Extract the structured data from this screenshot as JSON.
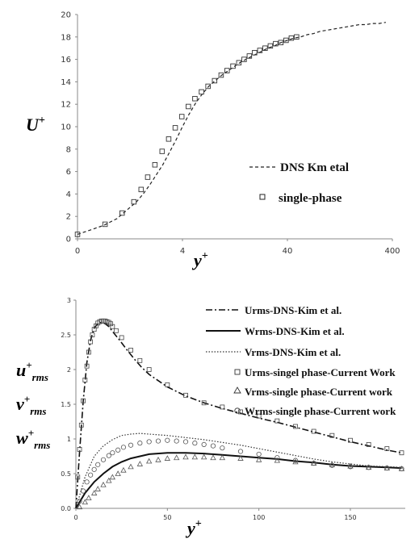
{
  "chart_data": [
    {
      "type": "line",
      "ylabel": "U+",
      "xlabel": "y+",
      "x_tick_labels": [
        "0",
        "4",
        "40",
        "400"
      ],
      "y_ticks": [
        0,
        2,
        4,
        6,
        8,
        10,
        12,
        14,
        16,
        18,
        20
      ],
      "ylim": [
        0,
        20
      ],
      "grid": false,
      "legend_position": "center-right",
      "series": [
        {
          "name": "DNS Km etal",
          "style": "dashed-line",
          "x": [
            0,
            0.5,
            1,
            1.5,
            2,
            2.5,
            3,
            3.5,
            4,
            4.5,
            5,
            5.5,
            6,
            6.5,
            7,
            7.5,
            8,
            8.5,
            9,
            9.5,
            10,
            10.5,
            11,
            11.5,
            12,
            12.5,
            13,
            13.5,
            14,
            14.5,
            15,
            15.5,
            16,
            16.5,
            17,
            17.5,
            18,
            18.5,
            19,
            19.5,
            20,
            20.5,
            21,
            21.5,
            22,
            22.5,
            23,
            23.5
          ],
          "values": [
            0.4,
            0.6,
            0.8,
            1.0,
            1.2,
            1.5,
            1.8,
            2.3,
            2.8,
            3.3,
            4.0,
            4.8,
            5.7,
            6.6,
            7.7,
            8.8,
            10.0,
            11.1,
            12.1,
            12.9,
            13.6,
            14.1,
            14.6,
            15.0,
            15.4,
            15.8,
            16.1,
            16.4,
            16.7,
            17.0,
            17.2,
            17.5,
            17.7,
            17.9,
            18.0,
            18.2,
            18.3,
            18.5,
            18.6,
            18.7,
            18.8,
            18.9,
            19.0,
            19.1,
            19.1,
            19.2,
            19.2,
            19.3
          ]
        },
        {
          "name": "single-phase",
          "style": "open-square",
          "x": [
            0,
            2.1,
            3.4,
            4.3,
            4.85,
            5.35,
            5.9,
            6.45,
            6.95,
            7.45,
            7.95,
            8.45,
            8.95,
            9.45,
            9.95,
            10.45,
            10.95,
            11.4,
            11.85,
            12.3,
            12.7,
            13.1,
            13.5,
            13.9,
            14.3,
            14.7,
            15.1,
            15.5,
            15.9,
            16.3,
            16.7
          ],
          "values": [
            0.4,
            1.3,
            2.3,
            3.3,
            4.4,
            5.5,
            6.6,
            7.8,
            8.9,
            9.9,
            10.9,
            11.8,
            12.5,
            13.1,
            13.6,
            14.1,
            14.6,
            15.0,
            15.4,
            15.7,
            16.0,
            16.3,
            16.6,
            16.8,
            17.0,
            17.2,
            17.4,
            17.5,
            17.7,
            17.9,
            18.0
          ]
        }
      ]
    },
    {
      "type": "line",
      "xlabel": "y+",
      "ylabel_lines": [
        "u+rms",
        "v+rms",
        "w+rms"
      ],
      "x_ticks": [
        0,
        50,
        100,
        150
      ],
      "y_ticks": [
        0,
        0.5,
        1,
        1.5,
        2,
        2.5,
        3
      ],
      "y_tick_labels": [
        "0.0",
        "0.5",
        "1",
        "1.5",
        "2",
        "2.5",
        "3"
      ],
      "xlim": [
        0,
        180
      ],
      "ylim": [
        0,
        3
      ],
      "grid": false,
      "legend_position": "top-right",
      "series": [
        {
          "name": "Urms-DNS-Kim et al.",
          "style": "dash-dot-line",
          "x": [
            0,
            2,
            4,
            6,
            8,
            10,
            12,
            14,
            16,
            18,
            20,
            24,
            28,
            32,
            36,
            40,
            50,
            60,
            70,
            80,
            90,
            100,
            110,
            120,
            130,
            140,
            150,
            160,
            170,
            178
          ],
          "values": [
            0,
            0.8,
            1.55,
            2.1,
            2.42,
            2.6,
            2.66,
            2.68,
            2.66,
            2.62,
            2.55,
            2.42,
            2.28,
            2.15,
            2.03,
            1.93,
            1.75,
            1.62,
            1.52,
            1.44,
            1.37,
            1.3,
            1.24,
            1.17,
            1.1,
            1.03,
            0.96,
            0.9,
            0.84,
            0.8
          ]
        },
        {
          "name": "Wrms-DNS-Kim et al.",
          "style": "solid-line",
          "x": [
            0,
            5,
            10,
            15,
            20,
            25,
            30,
            40,
            50,
            60,
            70,
            80,
            90,
            100,
            110,
            120,
            130,
            140,
            150,
            160,
            170,
            178
          ],
          "values": [
            0,
            0.22,
            0.38,
            0.5,
            0.6,
            0.67,
            0.72,
            0.78,
            0.8,
            0.8,
            0.79,
            0.77,
            0.75,
            0.73,
            0.71,
            0.68,
            0.66,
            0.63,
            0.61,
            0.6,
            0.59,
            0.58
          ]
        },
        {
          "name": "Vrms-DNS-Kim et al.",
          "style": "dotted-line",
          "x": [
            0,
            5,
            10,
            15,
            20,
            25,
            30,
            35,
            40,
            50,
            60,
            70,
            80,
            90,
            100,
            110,
            120,
            130,
            140,
            150,
            160,
            170,
            178
          ],
          "values": [
            0,
            0.45,
            0.75,
            0.9,
            0.99,
            1.05,
            1.07,
            1.08,
            1.07,
            1.05,
            1.02,
            0.99,
            0.95,
            0.91,
            0.86,
            0.81,
            0.76,
            0.71,
            0.67,
            0.64,
            0.61,
            0.6,
            0.59
          ]
        },
        {
          "name": "Urms-singel phase-Current Work",
          "style": "open-square",
          "x": [
            1,
            2,
            3,
            4,
            5,
            6,
            7,
            8,
            9,
            10,
            11,
            12,
            13,
            14,
            15,
            16,
            17,
            18,
            19,
            20,
            22,
            25,
            30,
            35,
            40,
            50,
            60,
            70,
            80,
            90,
            100,
            110,
            120,
            130,
            140,
            150,
            160,
            170,
            178
          ],
          "values": [
            0.45,
            0.85,
            1.2,
            1.55,
            1.85,
            2.05,
            2.25,
            2.4,
            2.5,
            2.58,
            2.63,
            2.67,
            2.69,
            2.7,
            2.7,
            2.7,
            2.69,
            2.68,
            2.66,
            2.62,
            2.56,
            2.46,
            2.28,
            2.13,
            2.0,
            1.78,
            1.63,
            1.52,
            1.46,
            1.39,
            1.33,
            1.26,
            1.18,
            1.11,
            1.05,
            0.98,
            0.92,
            0.86,
            0.8
          ]
        },
        {
          "name": "Vrms-single phase-Current work",
          "style": "open-triangle",
          "x": [
            2,
            5,
            7,
            10,
            12,
            15,
            18,
            20,
            23,
            26,
            30,
            35,
            40,
            45,
            50,
            55,
            60,
            65,
            70,
            75,
            80,
            90,
            100,
            110,
            120,
            130,
            140,
            150,
            160,
            170,
            178
          ],
          "values": [
            0.02,
            0.09,
            0.15,
            0.22,
            0.28,
            0.34,
            0.4,
            0.45,
            0.5,
            0.55,
            0.6,
            0.64,
            0.68,
            0.7,
            0.72,
            0.73,
            0.74,
            0.74,
            0.74,
            0.73,
            0.73,
            0.72,
            0.7,
            0.69,
            0.67,
            0.65,
            0.63,
            0.61,
            0.59,
            0.58,
            0.57
          ]
        },
        {
          "name": "Wrms-single phase-Current work",
          "style": "open-circle",
          "x": [
            2,
            4,
            6,
            8,
            10,
            12,
            15,
            18,
            20,
            23,
            26,
            30,
            35,
            40,
            45,
            50,
            55,
            60,
            65,
            70,
            75,
            80,
            90,
            100,
            110,
            120,
            130,
            140,
            150,
            160,
            170,
            178
          ],
          "values": [
            0.1,
            0.25,
            0.38,
            0.48,
            0.56,
            0.63,
            0.7,
            0.76,
            0.8,
            0.84,
            0.88,
            0.91,
            0.94,
            0.96,
            0.97,
            0.98,
            0.97,
            0.96,
            0.94,
            0.92,
            0.9,
            0.87,
            0.82,
            0.78,
            0.73,
            0.69,
            0.65,
            0.62,
            0.6,
            0.59,
            0.58,
            0.57
          ]
        }
      ]
    }
  ],
  "top_axis_label_main": "y",
  "top_axis_label_sup": "+",
  "top_ylabel_main": "U",
  "top_ylabel_sup": "+",
  "bottom_axis_label_main": "y",
  "bottom_axis_label_sup": "+"
}
